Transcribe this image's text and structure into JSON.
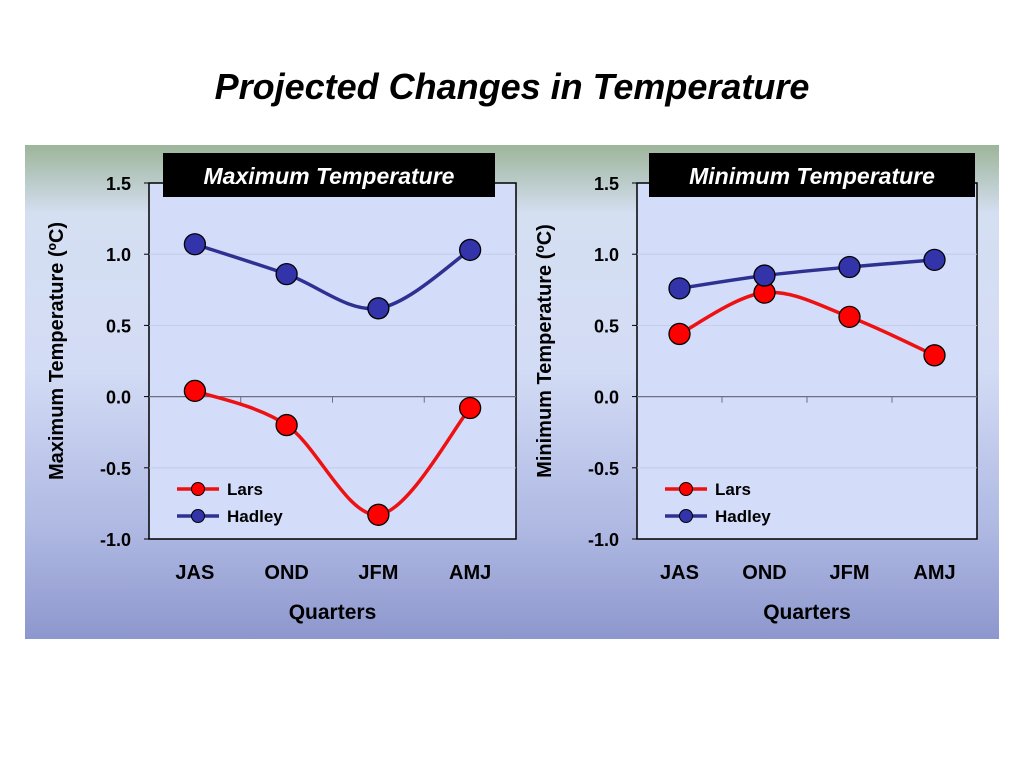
{
  "title": "Projected Changes in Temperature",
  "colors": {
    "lars": "#ff0000",
    "lars_line": "#ee1111",
    "hadley": "#3333aa",
    "hadley_line": "#2e3192",
    "plot_bg": "#d3dcf9",
    "gridline": "#8a8fb0"
  },
  "chart_data": [
    {
      "type": "line",
      "title": "Maximum Temperature",
      "xlabel": "Quarters",
      "ylabel": "Maximum Temperature (ºC)",
      "categories": [
        "JAS",
        "OND",
        "JFM",
        "AMJ"
      ],
      "ylim": [
        -1.0,
        1.5
      ],
      "yticks": [
        "1.5",
        "1.0",
        "0.5",
        "0.0",
        "-0.5",
        "-1.0"
      ],
      "legend_position": "bottom-left",
      "smooth": true,
      "series": [
        {
          "name": "Lars",
          "values": [
            0.04,
            -0.2,
            -0.83,
            -0.08
          ]
        },
        {
          "name": "Hadley",
          "values": [
            1.07,
            0.86,
            0.62,
            1.03
          ]
        }
      ]
    },
    {
      "type": "line",
      "title": "Minimum Temperature",
      "xlabel": "Quarters",
      "ylabel": "Minimum Temperature (ºC)",
      "categories": [
        "JAS",
        "OND",
        "JFM",
        "AMJ"
      ],
      "ylim": [
        -1.0,
        1.5
      ],
      "yticks": [
        "1.5",
        "1.0",
        "0.5",
        "0.0",
        "-0.5",
        "-1.0"
      ],
      "legend_position": "bottom-left",
      "smooth": true,
      "series": [
        {
          "name": "Lars",
          "values": [
            0.44,
            0.73,
            0.56,
            0.29
          ]
        },
        {
          "name": "Hadley",
          "values": [
            0.76,
            0.85,
            0.91,
            0.96
          ]
        }
      ]
    }
  ]
}
